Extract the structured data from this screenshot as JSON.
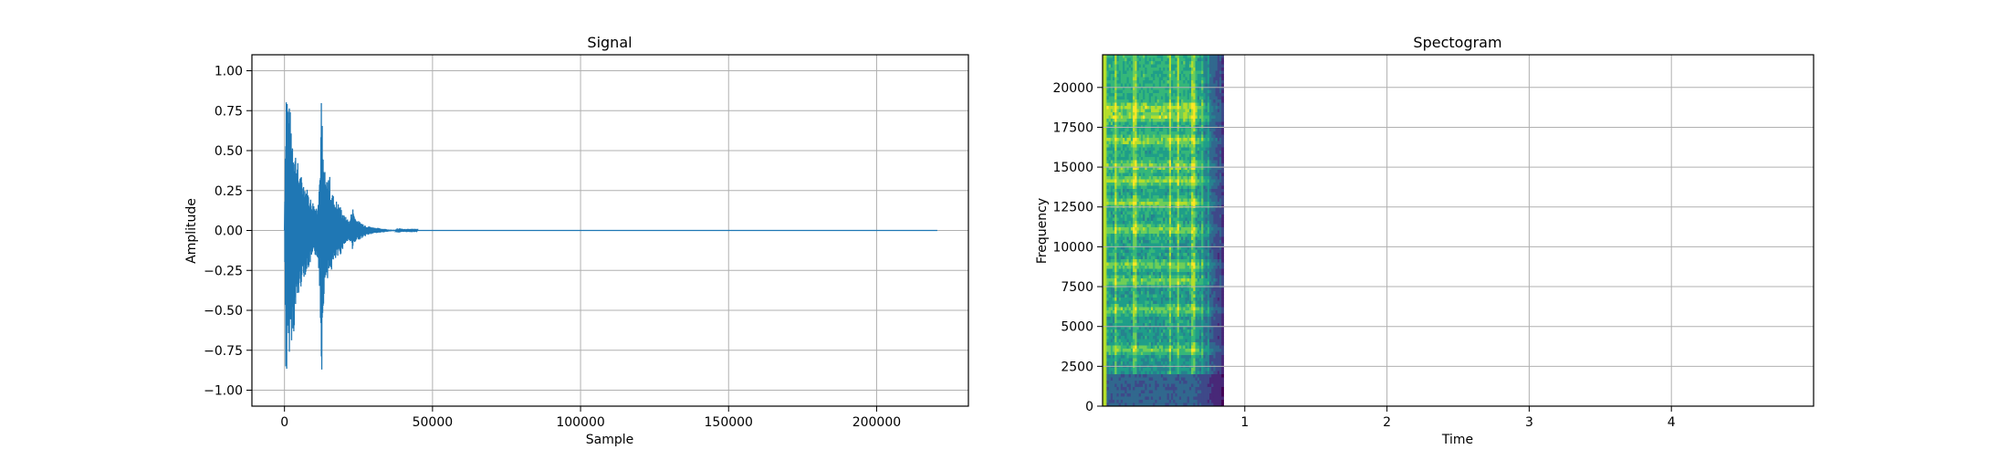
{
  "chart_data": [
    {
      "type": "line",
      "title": "Signal",
      "xlabel": "Sample",
      "ylabel": "Amplitude",
      "xlim": [
        -11000,
        231000
      ],
      "ylim": [
        -1.1,
        1.1
      ],
      "xticks": [
        0,
        50000,
        100000,
        150000,
        200000
      ],
      "xtick_labels": [
        "0",
        "50000",
        "100000",
        "150000",
        "200000"
      ],
      "yticks": [
        -1.0,
        -0.75,
        -0.5,
        -0.25,
        0.0,
        0.25,
        0.5,
        0.75,
        1.0
      ],
      "ytick_labels": [
        "−1.00",
        "−0.75",
        "−0.50",
        "−0.25",
        "0.00",
        "0.25",
        "0.50",
        "0.75",
        "1.00"
      ],
      "grid": true,
      "color": "#1f77b4",
      "series": [
        {
          "x": [
            0,
            500,
            1000,
            1500,
            2000,
            3000,
            4000,
            5000,
            6000,
            7000,
            8000,
            9000,
            10000,
            11000,
            12000,
            12500,
            13000,
            14000,
            15000,
            16000,
            17000,
            18000,
            19000,
            20000,
            21000,
            22000,
            23000,
            24000,
            25000,
            26000,
            28000,
            30000,
            32000,
            34000,
            36000,
            38000,
            40000,
            220500
          ],
          "upper": [
            0.0,
            1.0,
            0.92,
            0.8,
            0.75,
            0.6,
            0.48,
            0.38,
            0.33,
            0.3,
            0.25,
            0.2,
            0.18,
            0.15,
            0.4,
            0.88,
            0.5,
            0.3,
            0.38,
            0.25,
            0.2,
            0.18,
            0.15,
            0.1,
            0.08,
            0.06,
            0.15,
            0.08,
            0.06,
            0.05,
            0.03,
            0.02,
            0.015,
            0.01,
            0.005,
            0.003,
            0.002,
            0.0
          ],
          "lower": [
            0.0,
            -1.0,
            -0.92,
            -0.8,
            -0.7,
            -0.68,
            -0.5,
            -0.4,
            -0.32,
            -0.28,
            -0.25,
            -0.2,
            -0.18,
            -0.15,
            -0.4,
            -0.98,
            -0.5,
            -0.3,
            -0.3,
            -0.25,
            -0.2,
            -0.18,
            -0.15,
            -0.1,
            -0.08,
            -0.06,
            -0.12,
            -0.08,
            -0.06,
            -0.05,
            -0.03,
            -0.02,
            -0.015,
            -0.01,
            -0.005,
            -0.003,
            -0.002,
            0.0
          ]
        }
      ]
    },
    {
      "type": "heatmap",
      "title": "Spectogram",
      "xlabel": "Time",
      "ylabel": "Frequency",
      "xlim": [
        0,
        5.0
      ],
      "ylim": [
        0,
        22050
      ],
      "xticks": [
        1,
        2,
        3,
        4
      ],
      "xtick_labels": [
        "1",
        "2",
        "3",
        "4"
      ],
      "yticks": [
        0,
        2500,
        5000,
        7500,
        10000,
        12500,
        15000,
        17500,
        20000
      ],
      "ytick_labels": [
        "0",
        "2500",
        "5000",
        "7500",
        "10000",
        "12500",
        "15000",
        "17500",
        "20000"
      ],
      "grid": true,
      "colormap": "viridis",
      "data_time_extent": [
        0,
        0.85
      ],
      "data_freq_extent": [
        0,
        22050
      ]
    }
  ]
}
